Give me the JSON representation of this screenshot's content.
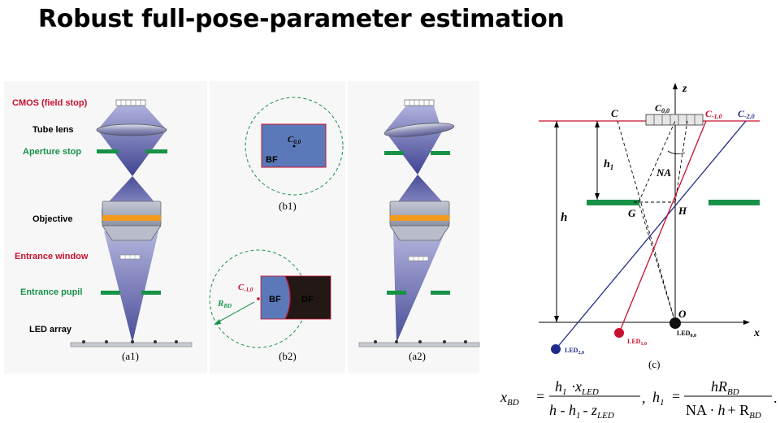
{
  "title": "Robust full-pose-parameter estimation",
  "a1": {
    "cmos": "CMOS (field stop)",
    "tube_lens": "Tube lens",
    "aperture_stop": "Aperture stop",
    "objective": "Objective",
    "entrance_window": "Entrance window",
    "entrance_pupil": "Entrance pupil",
    "led_array": "LED array",
    "caption": "(a1)"
  },
  "a2": {
    "caption": "(a2)"
  },
  "b1": {
    "center": "C",
    "center_sub": "0,0",
    "bf": "BF",
    "caption": "(b1)"
  },
  "b2": {
    "c": "C",
    "c_sub": "-1,0",
    "r": "R",
    "r_sub": "BD",
    "bf": "BF",
    "df": "DF",
    "caption": "(b2)"
  },
  "c": {
    "z": "z",
    "x": "x",
    "c": "C",
    "c00": "C",
    "c00_sub": "0,0",
    "cm1": "C",
    "cm1_sub": "-1,0",
    "cm2": "C",
    "cm2_sub": "-2,0",
    "h1": "h",
    "h1_sub": "1",
    "na": "NA",
    "g": "G",
    "hpt": "H",
    "h": "h",
    "o": "O",
    "led00": "LED",
    "led00_sub": "0,0",
    "led10": "LED",
    "led10_sub": "1,0",
    "led20": "LED",
    "led20_sub": "2,0",
    "caption": "(c)"
  },
  "equation": {
    "lhs": "x",
    "lhs_sub": "BD",
    "num1": "h",
    "num1_sub1": "1",
    "num1_dot": "·",
    "num1_x": "x",
    "num1_sub2": "LED",
    "den1": "h -  h",
    "den1_sub1": "1",
    "den1_minus": "-  z",
    "den1_sub2": "LED",
    "comma": ",",
    "h1": "h",
    "h1_sub": "1",
    "num2": "hR",
    "num2_sub": "BD",
    "den2_a": "NA ·",
    "den2_b": "h",
    "den2_c": "+ R",
    "den2_sub": "BD",
    "period": "."
  },
  "colors": {
    "red": "#c8102e",
    "green": "#179247",
    "navy": "#1f2a8a",
    "beam": "#5a5fb5",
    "bf_fill": "#5b79b8",
    "df_fill": "#231816"
  }
}
